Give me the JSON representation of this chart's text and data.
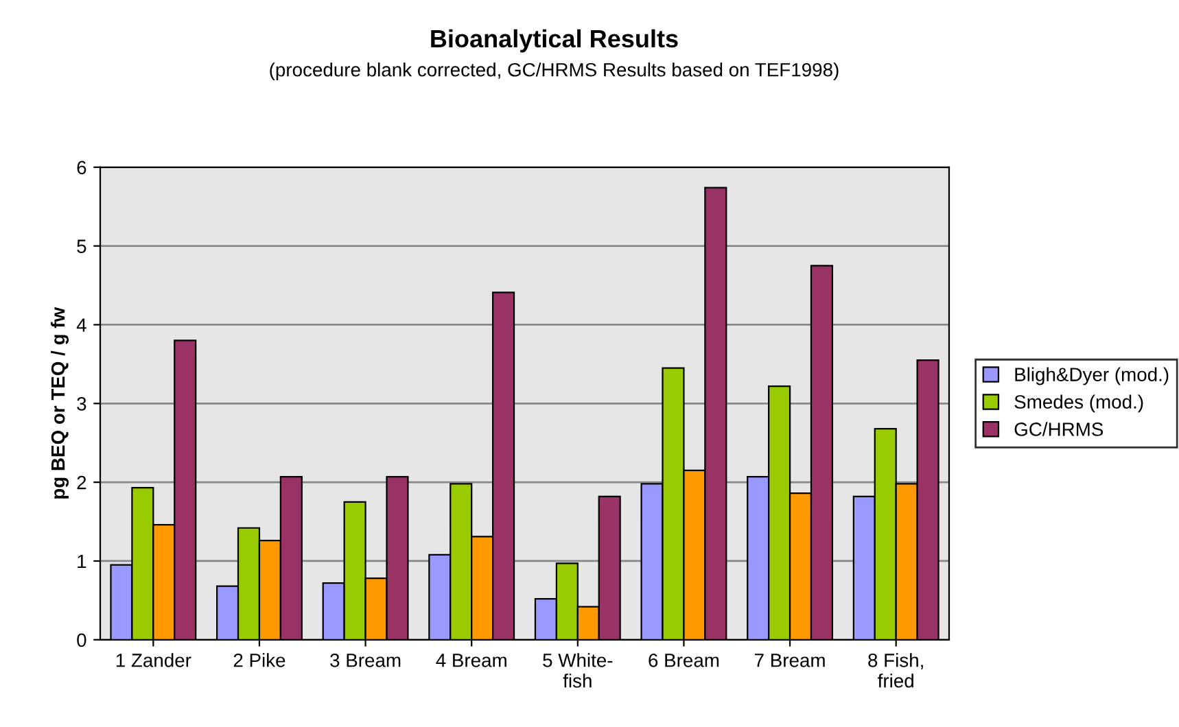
{
  "chart_data": {
    "type": "bar",
    "title": "Bioanalytical Results",
    "subtitle": "(procedure blank corrected, GC/HRMS Results based on TEF1998)",
    "ylabel": "pg BEQ or TEQ / g fw",
    "categories": [
      "1 Zander",
      "2 Pike",
      "3 Bream",
      "4 Bream",
      "5 White-\nfish",
      "6 Bream",
      "7 Bream",
      "8 Fish,\nfried"
    ],
    "series": [
      {
        "name": "Bligh&Dyer (mod.)",
        "color": "#9999ff",
        "values": [
          0.95,
          0.68,
          0.72,
          1.08,
          0.52,
          1.98,
          2.07,
          1.82
        ]
      },
      {
        "name": "Smedes (mod.)",
        "color": "#99cc00",
        "values": [
          1.93,
          1.42,
          1.75,
          1.98,
          0.97,
          3.45,
          3.22,
          2.68
        ]
      },
      {
        "color": "#ff9900",
        "values": [
          1.46,
          1.26,
          0.78,
          1.31,
          0.42,
          2.15,
          1.86,
          1.98
        ]
      },
      {
        "name": "GC/HRMS",
        "color": "#993366",
        "values": [
          3.8,
          2.07,
          2.07,
          4.41,
          1.82,
          5.74,
          4.75,
          3.55
        ]
      }
    ],
    "ylim": [
      0,
      6
    ],
    "yticks": [
      0,
      1,
      2,
      3,
      4,
      5,
      6
    ],
    "grid": "y",
    "legend": "right"
  }
}
